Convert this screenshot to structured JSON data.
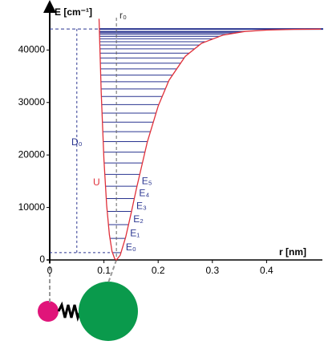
{
  "chart_data": {
    "type": "line",
    "y_label": "E [cm⁻¹]",
    "x_label": "r [nm]",
    "x": [
      0.091,
      0.095,
      0.1,
      0.105,
      0.11,
      0.115,
      0.12,
      0.123,
      0.13,
      0.14,
      0.15,
      0.16,
      0.18,
      0.2,
      0.22,
      0.25,
      0.28,
      0.32,
      0.36,
      0.4,
      0.45,
      0.5
    ],
    "series": [
      {
        "name": "U",
        "color": "#e0303a",
        "values": [
          45950,
          31930,
          19110,
          10390,
          4820,
          1620,
          200,
          0,
          900,
          4280,
          8830,
          13650,
          22490,
          29300,
          34230,
          38790,
          41270,
          42850,
          43530,
          43800,
          43940,
          43980
        ]
      }
    ],
    "levels": {
      "color": "#2a3590",
      "values": [
        1389,
        4099,
        6719,
        9249,
        11689,
        14039,
        16299,
        18469,
        20549,
        22539,
        24439,
        26249,
        27969,
        29599,
        31139,
        32589,
        33949,
        35219,
        36399,
        37489,
        38489,
        39399,
        40219,
        40949,
        41589,
        42139,
        42599,
        42969,
        43249,
        43439,
        43539
      ],
      "labels": [
        "E₀",
        "E₁",
        "E₂",
        "E₃",
        "E₄",
        "E₅"
      ]
    },
    "dissociation_energy": 44000,
    "dissociation_label": "D₀",
    "r0": 0.123,
    "r0_label": "r₀",
    "xlim": [
      0,
      0.5
    ],
    "ylim": [
      0,
      48000
    ],
    "xticks": [
      0,
      0.1,
      0.2,
      0.3,
      0.4
    ],
    "yticks": [
      0,
      10000,
      20000,
      30000,
      40000
    ]
  }
}
